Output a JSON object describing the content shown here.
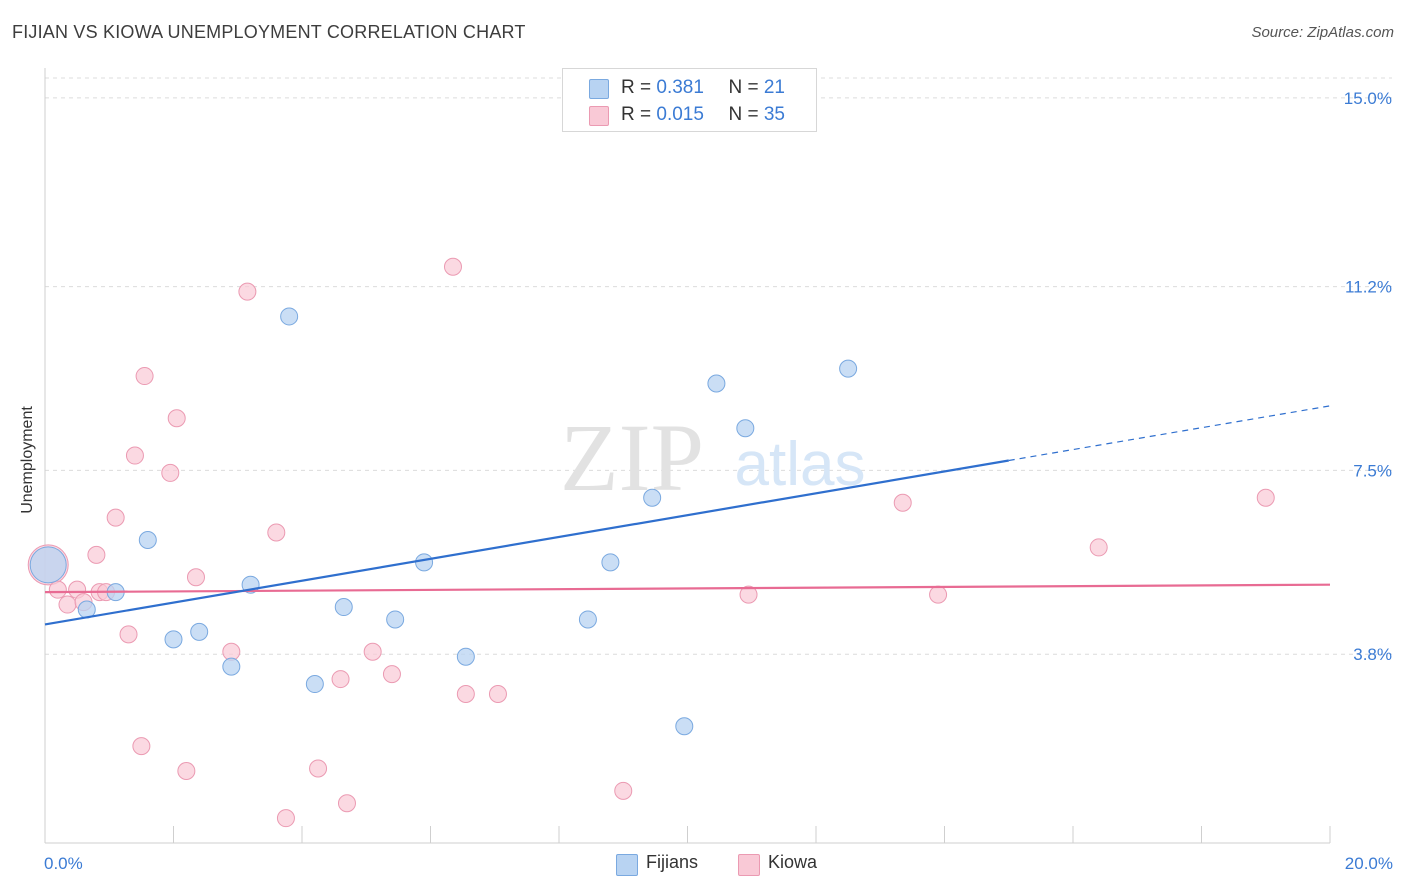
{
  "title": "FIJIAN VS KIOWA UNEMPLOYMENT CORRELATION CHART",
  "source": "Source: ZipAtlas.com",
  "watermark": {
    "zip": "ZIP",
    "atlas": "atlas"
  },
  "legend_top": {
    "rows": [
      {
        "r_label": "R = ",
        "r_value": "0.381",
        "n_label": "N = ",
        "n_value": "21"
      },
      {
        "r_label": "R = ",
        "r_value": "0.015",
        "n_label": "N = ",
        "n_value": "35"
      }
    ]
  },
  "legend_bottom": {
    "fijians": "Fijians",
    "kiowa": "Kiowa"
  },
  "colors": {
    "fijians_fill": "#b8d3f2",
    "fijians_stroke": "#7aa9e0",
    "fijians_line": "#2f6fce",
    "kiowa_fill": "#f9c9d6",
    "kiowa_stroke": "#eb9ab2",
    "kiowa_line": "#e86b93",
    "axis_text": "#3b7bd4"
  },
  "chart_data": {
    "type": "scatter",
    "title": "FIJIAN VS KIOWA UNEMPLOYMENT CORRELATION CHART",
    "xlabel": "",
    "ylabel": "Unemployment",
    "xlim": [
      0,
      20
    ],
    "ylim": [
      0,
      15.4
    ],
    "x_tick_labels": [
      "0.0%",
      "20.0%"
    ],
    "y_ticks": [
      3.8,
      7.5,
      11.2,
      15.0
    ],
    "y_tick_labels": [
      "3.8%",
      "7.5%",
      "11.2%",
      "15.0%"
    ],
    "grid": true,
    "legend": "bottom-center",
    "series": [
      {
        "name": "Fijians",
        "R": 0.381,
        "N": 21,
        "points": [
          [
            0.05,
            5.6
          ],
          [
            0.65,
            4.7
          ],
          [
            1.1,
            5.05
          ],
          [
            1.6,
            6.1
          ],
          [
            2.0,
            4.1
          ],
          [
            2.4,
            4.25
          ],
          [
            2.9,
            3.55
          ],
          [
            3.2,
            5.2
          ],
          [
            3.8,
            10.6
          ],
          [
            4.2,
            3.2
          ],
          [
            4.65,
            4.75
          ],
          [
            5.45,
            4.5
          ],
          [
            5.9,
            5.65
          ],
          [
            6.55,
            3.75
          ],
          [
            8.45,
            4.5
          ],
          [
            8.8,
            5.65
          ],
          [
            9.45,
            6.95
          ],
          [
            9.95,
            2.35
          ],
          [
            10.45,
            9.25
          ],
          [
            10.9,
            8.35
          ],
          [
            12.5,
            9.55
          ]
        ],
        "trend": {
          "x": [
            0,
            15.0
          ],
          "y": [
            4.4,
            7.7
          ],
          "dashed_to": [
            20.0,
            8.8
          ]
        }
      },
      {
        "name": "Kiowa",
        "R": 0.015,
        "N": 35,
        "points": [
          [
            0.05,
            5.6
          ],
          [
            0.2,
            5.1
          ],
          [
            0.35,
            4.8
          ],
          [
            0.5,
            5.1
          ],
          [
            0.6,
            4.85
          ],
          [
            0.8,
            5.8
          ],
          [
            0.85,
            5.05
          ],
          [
            0.95,
            5.05
          ],
          [
            1.1,
            6.55
          ],
          [
            1.3,
            4.2
          ],
          [
            1.4,
            7.8
          ],
          [
            1.5,
            1.95
          ],
          [
            1.55,
            9.4
          ],
          [
            1.95,
            7.45
          ],
          [
            2.05,
            8.55
          ],
          [
            2.2,
            1.45
          ],
          [
            2.35,
            5.35
          ],
          [
            2.9,
            3.85
          ],
          [
            3.15,
            11.1
          ],
          [
            3.6,
            6.25
          ],
          [
            3.75,
            0.5
          ],
          [
            4.25,
            1.5
          ],
          [
            4.6,
            3.3
          ],
          [
            4.7,
            0.8
          ],
          [
            5.1,
            3.85
          ],
          [
            5.4,
            3.4
          ],
          [
            6.35,
            11.6
          ],
          [
            6.55,
            3.0
          ],
          [
            7.05,
            3.0
          ],
          [
            9.0,
            1.05
          ],
          [
            10.95,
            5.0
          ],
          [
            13.35,
            6.85
          ],
          [
            13.9,
            5.0
          ],
          [
            16.4,
            5.95
          ],
          [
            19.0,
            6.95
          ]
        ],
        "trend": {
          "x": [
            0,
            20.0
          ],
          "y": [
            5.05,
            5.2
          ]
        }
      }
    ]
  }
}
